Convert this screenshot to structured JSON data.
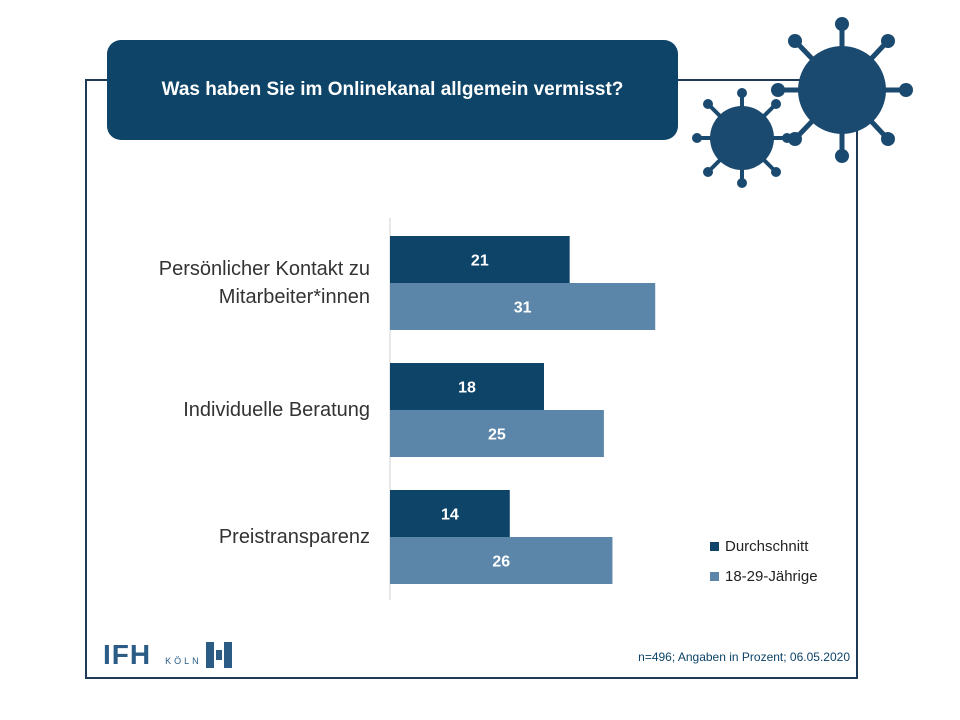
{
  "title": "Was haben Sie im Onlinekanal allgemein vermisst?",
  "footnote": "n=496; Angaben in Prozent; 06.05.2020",
  "logo": {
    "text": "IFH",
    "sub": "KÖLN"
  },
  "colors": {
    "series1": "#0d4468",
    "series2": "#5b86aa",
    "frame": "#1f3a56"
  },
  "chart_data": {
    "type": "bar",
    "orientation": "horizontal",
    "categories": [
      "Persönlicher Kontakt zu Mitarbeiter*innen",
      "Individuelle Beratung",
      "Preistransparenz"
    ],
    "series": [
      {
        "name": "Durchschnitt",
        "values": [
          21,
          18,
          14
        ]
      },
      {
        "name": "18-29-Jährige",
        "values": [
          31,
          25,
          26
        ]
      }
    ],
    "title": "Was haben Sie im Onlinekanal allgemein vermisst?",
    "xlim": [
      0,
      45
    ],
    "legend_position": "bottom-right",
    "grid": false,
    "data_labels": true
  }
}
